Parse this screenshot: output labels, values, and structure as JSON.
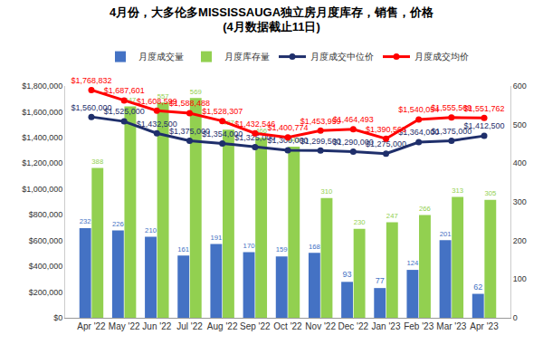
{
  "chart_data": {
    "type": "bar",
    "title": "4月份，大多伦多MISSISSAUGA独立房月度库存，销售，价格",
    "subtitle": "(4月数据截止11日)",
    "categories": [
      "Apr '22",
      "May '22",
      "Jun '22",
      "Jul '22",
      "Aug '22",
      "Sep '22",
      "Oct '22",
      "Nov '22",
      "Dec '22",
      "Jan '23",
      "Feb '23",
      "Mar '23",
      "Apr '23"
    ],
    "ylim": [
      0,
      1800000
    ],
    "yticks": [
      {
        "value": 0,
        "label": "$0"
      },
      {
        "value": 200000,
        "label": "$200,000"
      },
      {
        "value": 400000,
        "label": "$400,000"
      },
      {
        "value": 600000,
        "label": "$600,000"
      },
      {
        "value": 800000,
        "label": "$800,000"
      },
      {
        "value": 1000000,
        "label": "$1,000,000"
      },
      {
        "value": 1200000,
        "label": "$1,200,000"
      },
      {
        "value": 1400000,
        "label": "$1,400,000"
      },
      {
        "value": 1600000,
        "label": "$1,600,000"
      },
      {
        "value": 1800000,
        "label": "$1,800,000"
      }
    ],
    "y2lim": [
      0,
      600
    ],
    "y2ticks": [
      0,
      100,
      200,
      300,
      400,
      500,
      600
    ],
    "grid": false,
    "legend": "top",
    "data_labels": true,
    "series": [
      {
        "name": "月度成交量",
        "type": "bar",
        "axis": "y2",
        "color": "#4472c4",
        "values": [
          232,
          226,
          210,
          161,
          191,
          170,
          159,
          168,
          93,
          77,
          124,
          201,
          62
        ]
      },
      {
        "name": "月度库存量",
        "type": "bar",
        "axis": "y2",
        "color": "#92d050",
        "values": [
          388,
          547,
          557,
          569,
          487,
          466,
          443,
          310,
          230,
          247,
          266,
          313,
          305
        ]
      },
      {
        "name": "月度成交中位价",
        "type": "line",
        "color": "#1f2f6b",
        "marker": "circle",
        "line_style": "solid",
        "values": [
          1560000,
          1525000,
          1432500,
          1375000,
          1354000,
          1325000,
          1300000,
          1299500,
          1290000,
          1275000,
          1364000,
          1375000,
          1412500
        ],
        "value_labels": [
          "$1,560,000",
          "$1,525,000",
          "$1,432,500",
          "$1,375,000",
          "$1,354,000",
          "$1,325,000",
          "$1,300,000",
          "$1,299,500",
          "$1,290,000",
          "$1,275,000",
          "$1,364,000",
          "$1,375,000",
          "$1,412,500"
        ]
      },
      {
        "name": "月度成交均价",
        "type": "line",
        "color": "#ff0000",
        "marker": "circle",
        "line_style": "solid",
        "values": [
          1768832,
          1687601,
          1608599,
          1588488,
          1528307,
          1432546,
          1400774,
          1453959,
          1464493,
          1390563,
          1540054,
          1555569,
          1551762
        ],
        "value_labels": [
          "$1,768,832",
          "$1,687,601",
          "$1,608,599",
          "$1,588,488",
          "$1,528,307",
          "$1,432,546",
          "$1,400,774",
          "$1,453,959",
          "$1,464,493",
          "$1,390,563",
          "$1,540,054",
          "$1,555,569",
          "$1,551,762"
        ]
      }
    ]
  }
}
